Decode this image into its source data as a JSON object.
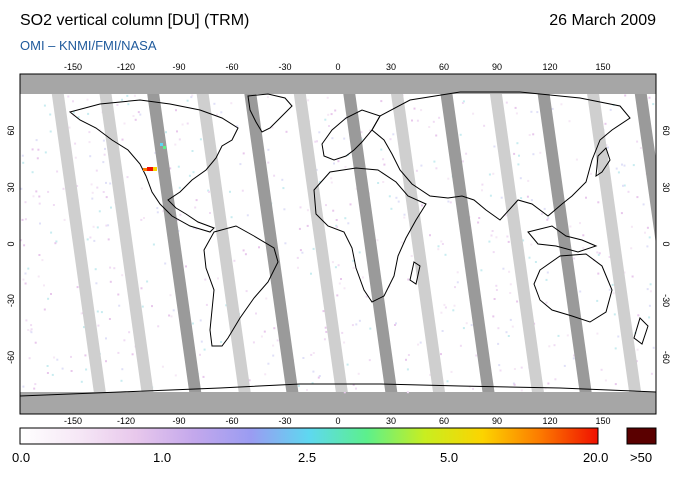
{
  "header": {
    "title": "SO2 vertical column [DU] (TRM)",
    "date": "26 March 2009",
    "subtitle": "OMI  –  KNMI/FMI/NASA"
  },
  "map": {
    "lon_ticks": [
      "-150",
      "-120",
      "-90",
      "-60",
      "-30",
      "0",
      "30",
      "60",
      "90",
      "120",
      "150"
    ],
    "lat_ticks": [
      "60",
      "30",
      "0",
      "-30",
      "-60"
    ],
    "colors": {
      "gap_dark": "#9a9a9a",
      "gap_light": "#cfcfcf",
      "polar": "#a6a6a6",
      "land_line": "#000000"
    }
  },
  "colorbar": {
    "labels": [
      "0.0",
      "1.0",
      "2.5",
      "5.0",
      "20.0"
    ],
    "overflow_label": ">50",
    "stops": [
      "#ffffff",
      "#f6e8f6",
      "#e8c8ec",
      "#c4a8ec",
      "#9a9cf2",
      "#5ed8f0",
      "#5cf08c",
      "#c8ee20",
      "#fcd400",
      "#fc7a00",
      "#f01000"
    ],
    "overflow_color": "#5a0000"
  }
}
